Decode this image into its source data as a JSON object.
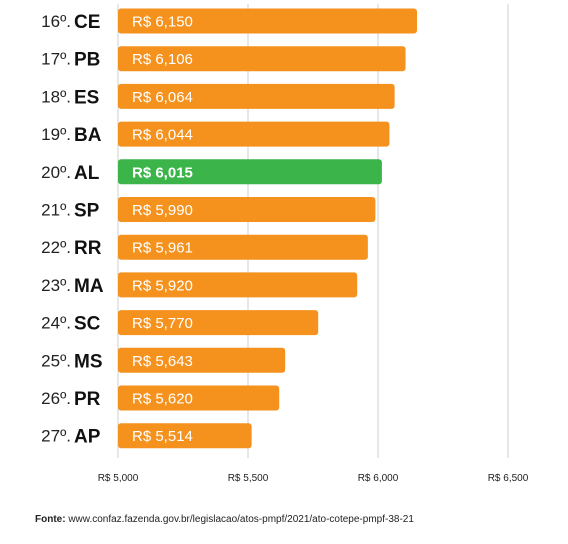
{
  "chart_data": {
    "type": "bar",
    "orientation": "horizontal",
    "ranks": [
      "16º.",
      "17º.",
      "18º.",
      "19º.",
      "20º.",
      "21º.",
      "22º.",
      "23º.",
      "24º.",
      "25º.",
      "26º.",
      "27º."
    ],
    "categories": [
      "CE",
      "PB",
      "ES",
      "BA",
      "AL",
      "SP",
      "RR",
      "MA",
      "SC",
      "MS",
      "PR",
      "AP"
    ],
    "values": [
      6150,
      6106,
      6064,
      6044,
      6015,
      5990,
      5961,
      5920,
      5770,
      5643,
      5620,
      5514
    ],
    "value_labels": [
      "R$ 6,150",
      "R$ 6,106",
      "R$ 6,064",
      "R$ 6,044",
      "R$ 6,015",
      "R$ 5,990",
      "R$ 5,961",
      "R$ 5,920",
      "R$ 5,770",
      "R$ 5,643",
      "R$ 5,620",
      "R$ 5,514"
    ],
    "highlight": "AL",
    "xlim": [
      5000,
      6500
    ],
    "xticks": [
      5000,
      5500,
      6000,
      6500
    ],
    "xtick_labels": [
      "R$ 5,000",
      "R$ 5,500",
      "R$ 6,000",
      "R$ 6,500"
    ],
    "grid": "vertical",
    "colors": {
      "bar": "#F5921E",
      "highlight": "#3BB54A",
      "grid": "#cfcfcf"
    }
  },
  "source": {
    "label": "Fonte:",
    "text": "www.confaz.fazenda.gov.br/legislacao/atos-pmpf/2021/ato-cotepe-pmpf-38-21"
  }
}
